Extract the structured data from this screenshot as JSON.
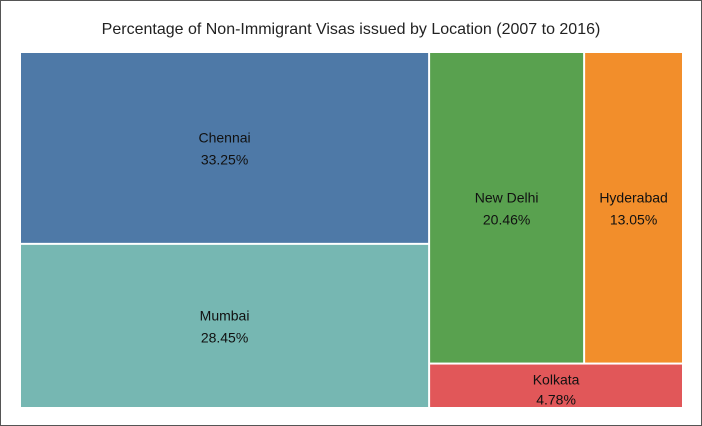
{
  "title": "Percentage of Non-Immigrant Visas issued by Location (2007 to 2016)",
  "chart_data": {
    "type": "treemap",
    "title": "Percentage of Non-Immigrant Visas issued by Location (2007 to 2016)",
    "unit": "%",
    "items": [
      {
        "name": "Chennai",
        "value": 33.25,
        "label": "33.25%",
        "color": "#4e79a7"
      },
      {
        "name": "Mumbai",
        "value": 28.45,
        "label": "28.45%",
        "color": "#76b7b2"
      },
      {
        "name": "New Delhi",
        "value": 20.46,
        "label": "20.46%",
        "color": "#59a14f"
      },
      {
        "name": "Hyderabad",
        "value": 13.05,
        "label": "13.05%",
        "color": "#f28e2b"
      },
      {
        "name": "Kolkata",
        "value": 4.78,
        "label": "4.78%",
        "color": "#e15759"
      }
    ]
  }
}
